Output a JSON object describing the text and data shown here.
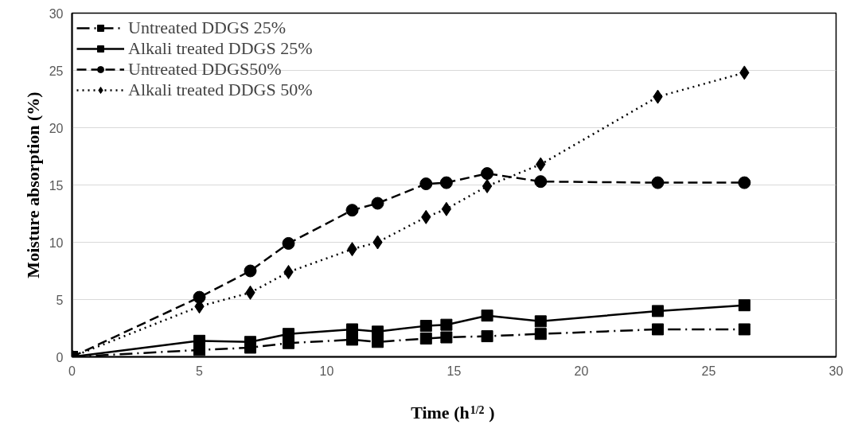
{
  "chart_data": {
    "type": "line",
    "xlabel": "Time (h$^{1/2}$)",
    "ylabel": "Moisture absorption (%)",
    "x": [
      0,
      5.0,
      7.0,
      8.5,
      11.0,
      12.0,
      13.9,
      14.7,
      16.3,
      18.4,
      23.0,
      26.4
    ],
    "series": [
      {
        "name": "Untreated DDGS 25%",
        "color": "#000000",
        "marker": "square",
        "line_style": "dashdot",
        "values": [
          0,
          0.6,
          0.8,
          1.2,
          1.5,
          1.3,
          1.6,
          1.7,
          1.8,
          2.0,
          2.4,
          2.4
        ]
      },
      {
        "name": "Alkali treated DDGS 25%",
        "color": "#000000",
        "marker": "square",
        "line_style": "solid",
        "values": [
          0,
          1.4,
          1.3,
          2.0,
          2.4,
          2.2,
          2.7,
          2.8,
          3.6,
          3.1,
          4.0,
          4.5
        ]
      },
      {
        "name": "Untreated DDGS50%",
        "color": "#000000",
        "marker": "circle",
        "line_style": "dashed",
        "values": [
          0,
          5.2,
          7.5,
          9.9,
          12.8,
          13.4,
          15.1,
          15.2,
          16.0,
          15.3,
          15.2,
          15.2
        ]
      },
      {
        "name": "Alkali treated DDGS 50%",
        "color": "#000000",
        "marker": "diamond",
        "line_style": "dotted",
        "values": [
          0,
          4.4,
          5.6,
          7.4,
          9.4,
          10.0,
          12.2,
          12.9,
          14.9,
          16.8,
          22.7,
          24.8
        ]
      }
    ],
    "xlim": [
      0,
      30
    ],
    "xticks": [
      0,
      5,
      10,
      15,
      20,
      25,
      30
    ],
    "ylim": [
      0,
      30
    ],
    "yticks": [
      0,
      5,
      10,
      15,
      20,
      25,
      30
    ],
    "grid": "y",
    "legend": "top left"
  }
}
